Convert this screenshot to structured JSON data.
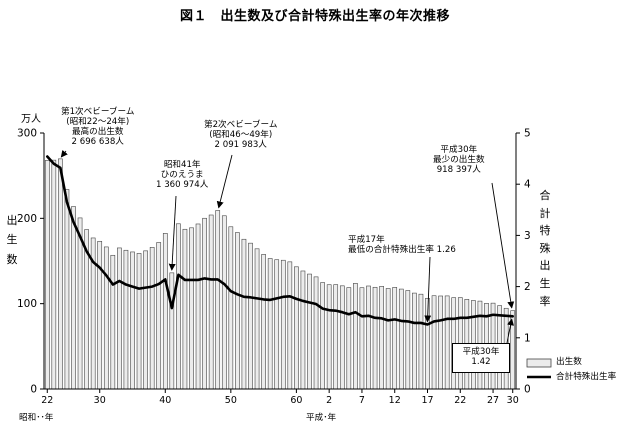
{
  "figure_title": "図１　出生数及び合計特殊出生率の年次推移",
  "left_axis": {
    "unit": "万人",
    "label": "出生数"
  },
  "right_axis": {
    "label": "合計特殊出生率"
  },
  "era_labels": {
    "showa": "昭和･･年",
    "heisei": "平成･年"
  },
  "annotations": {
    "baby_boom_1": "第1次ベビーブーム\n(昭和22～24年)\n最高の出生数\n2 696 638人",
    "hinoeuma": "昭和41年\nひのえうま\n1 360 974人",
    "baby_boom_2": "第2次ベビーブーム\n(昭和46～49年)\n2 091 983人",
    "h17_lowest_tfr": "平成17年\n最低の合計特殊出生率 1.26",
    "h30_lowest_births": "平成30年\n最少の出生数\n918 397人",
    "h30_tfr_box": "平成30年\n1.42"
  },
  "legend": {
    "bars": "出生数",
    "line": "合計特殊出生率"
  },
  "colors": {
    "bar_fill": "#ececec",
    "bar_stroke": "#444444",
    "line": "#000000",
    "axis": "#000000"
  },
  "chart_data": {
    "type": "bar",
    "title": "図１　出生数及び合計特殊出生率の年次推移",
    "x_label": "昭和･･年 / 平成･年",
    "x_tick_labels": [
      "22",
      "30",
      "40",
      "50",
      "60",
      "2",
      "7",
      "12",
      "17",
      "22",
      "27",
      "30"
    ],
    "x_tick_years": [
      1947,
      1955,
      1965,
      1975,
      1985,
      1990,
      1995,
      2000,
      2005,
      2010,
      2015,
      2018
    ],
    "years": [
      1947,
      1948,
      1949,
      1950,
      1951,
      1952,
      1953,
      1954,
      1955,
      1956,
      1957,
      1958,
      1959,
      1960,
      1961,
      1962,
      1963,
      1964,
      1965,
      1966,
      1967,
      1968,
      1969,
      1970,
      1971,
      1972,
      1973,
      1974,
      1975,
      1976,
      1977,
      1978,
      1979,
      1980,
      1981,
      1982,
      1983,
      1984,
      1985,
      1986,
      1987,
      1988,
      1989,
      1990,
      1991,
      1992,
      1993,
      1994,
      1995,
      1996,
      1997,
      1998,
      1999,
      2000,
      2001,
      2002,
      2003,
      2004,
      2005,
      2006,
      2007,
      2008,
      2009,
      2010,
      2011,
      2012,
      2013,
      2014,
      2015,
      2016,
      2017,
      2018
    ],
    "y_left_label": "出生数 (万人)",
    "y_left_range": [
      0,
      300
    ],
    "y_left_ticks": [
      0,
      100,
      200,
      300
    ],
    "y_right_label": "合計特殊出生率",
    "y_right_range": [
      0,
      5
    ],
    "y_right_ticks": [
      0,
      1,
      2,
      3,
      4,
      5
    ],
    "series": [
      {
        "name": "出生数",
        "kind": "bar",
        "axis": "left",
        "unit": "万人",
        "values": [
          267.9,
          268.2,
          269.7,
          233.8,
          213.8,
          200.5,
          186.8,
          177.0,
          173.1,
          166.5,
          156.7,
          165.3,
          162.6,
          160.6,
          158.9,
          161.9,
          166.0,
          171.7,
          182.4,
          136.1,
          193.6,
          187.2,
          188.9,
          193.4,
          200.1,
          203.9,
          209.2,
          203.0,
          190.1,
          183.3,
          175.5,
          170.9,
          164.3,
          157.7,
          152.9,
          151.5,
          150.9,
          149.0,
          143.2,
          138.3,
          134.7,
          131.4,
          124.7,
          122.2,
          122.3,
          120.9,
          118.8,
          123.8,
          118.7,
          120.7,
          119.2,
          120.3,
          117.8,
          119.1,
          117.1,
          115.4,
          112.4,
          111.1,
          106.3,
          109.3,
          109.0,
          109.1,
          107.0,
          107.1,
          105.1,
          103.7,
          103.0,
          100.4,
          100.6,
          97.7,
          94.6,
          91.8
        ]
      },
      {
        "name": "合計特殊出生率",
        "kind": "line",
        "axis": "right",
        "values": [
          4.54,
          4.4,
          4.32,
          3.65,
          3.26,
          2.98,
          2.69,
          2.48,
          2.37,
          2.22,
          2.04,
          2.11,
          2.04,
          2.0,
          1.96,
          1.98,
          2.0,
          2.05,
          2.14,
          1.58,
          2.23,
          2.13,
          2.13,
          2.13,
          2.16,
          2.14,
          2.14,
          2.05,
          1.91,
          1.85,
          1.8,
          1.79,
          1.77,
          1.75,
          1.74,
          1.77,
          1.8,
          1.81,
          1.76,
          1.72,
          1.69,
          1.66,
          1.57,
          1.54,
          1.53,
          1.5,
          1.46,
          1.5,
          1.42,
          1.43,
          1.39,
          1.38,
          1.34,
          1.36,
          1.33,
          1.32,
          1.29,
          1.29,
          1.26,
          1.32,
          1.34,
          1.37,
          1.37,
          1.39,
          1.39,
          1.41,
          1.43,
          1.42,
          1.45,
          1.44,
          1.43,
          1.42
        ]
      }
    ],
    "grid": false,
    "legend_position": "bottom-right"
  }
}
